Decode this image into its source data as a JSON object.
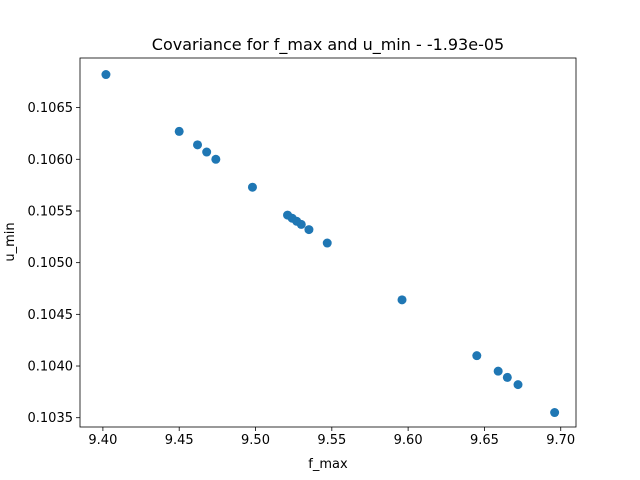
{
  "chart_data": {
    "type": "scatter",
    "title": "Covariance for f_max and u_min - -1.93e-05",
    "xlabel": "f_max",
    "ylabel": "u_min",
    "xlim": [
      9.385,
      9.71
    ],
    "ylim": [
      0.10341,
      0.10698
    ],
    "xticks": [
      9.4,
      9.45,
      9.5,
      9.55,
      9.6,
      9.65,
      9.7
    ],
    "xtick_labels": [
      "9.40",
      "9.45",
      "9.50",
      "9.55",
      "9.60",
      "9.65",
      "9.70"
    ],
    "yticks": [
      0.1035,
      0.104,
      0.1045,
      0.105,
      0.1055,
      0.106,
      0.1065
    ],
    "ytick_labels": [
      "0.1035",
      "0.1040",
      "0.1045",
      "0.1050",
      "0.1055",
      "0.1060",
      "0.1065"
    ],
    "grid": false,
    "color": "#1f77b4",
    "points": [
      {
        "x": 9.402,
        "y": 0.10682
      },
      {
        "x": 9.45,
        "y": 0.10627
      },
      {
        "x": 9.462,
        "y": 0.10614
      },
      {
        "x": 9.468,
        "y": 0.10607
      },
      {
        "x": 9.474,
        "y": 0.106
      },
      {
        "x": 9.498,
        "y": 0.10573
      },
      {
        "x": 9.521,
        "y": 0.10546
      },
      {
        "x": 9.524,
        "y": 0.10543
      },
      {
        "x": 9.527,
        "y": 0.1054
      },
      {
        "x": 9.53,
        "y": 0.10537
      },
      {
        "x": 9.535,
        "y": 0.10532
      },
      {
        "x": 9.547,
        "y": 0.10519
      },
      {
        "x": 9.596,
        "y": 0.10464
      },
      {
        "x": 9.645,
        "y": 0.1041
      },
      {
        "x": 9.659,
        "y": 0.10395
      },
      {
        "x": 9.665,
        "y": 0.10389
      },
      {
        "x": 9.672,
        "y": 0.10382
      },
      {
        "x": 9.696,
        "y": 0.10355
      }
    ]
  }
}
